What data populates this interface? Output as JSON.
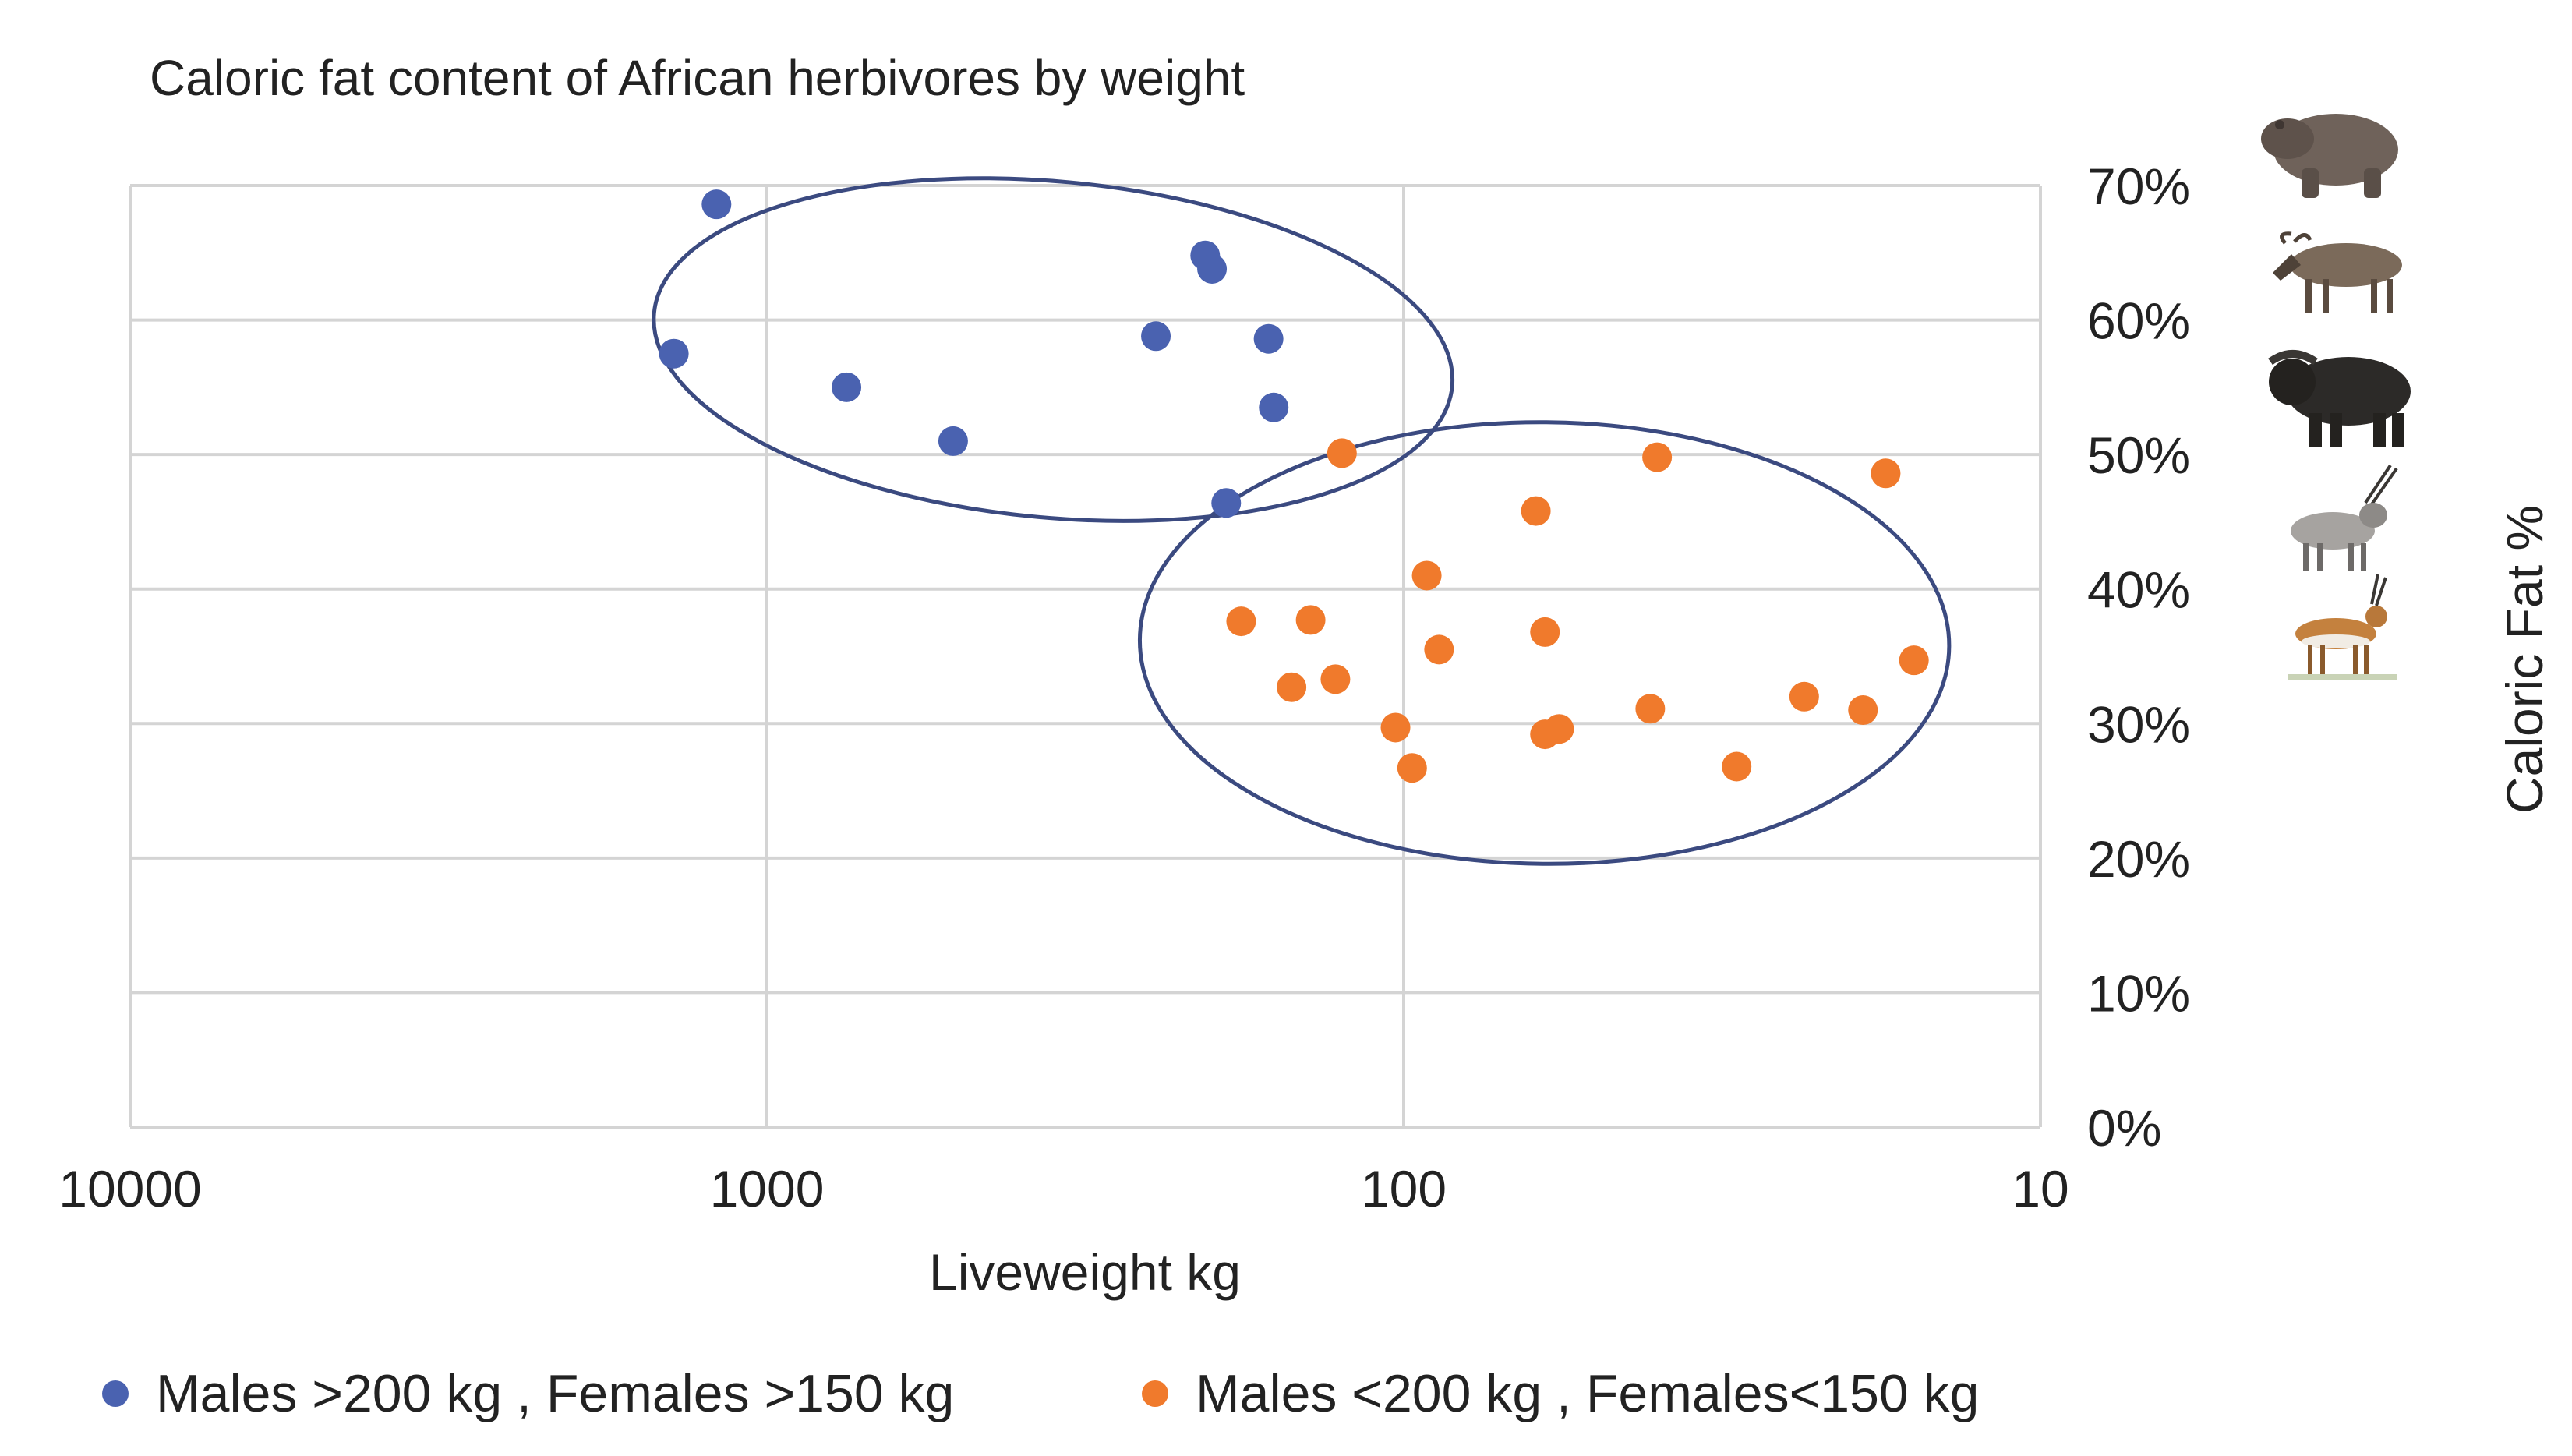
{
  "chart_data": {
    "type": "scatter",
    "title": "Caloric fat content of African herbivores by weight",
    "xlabel": "Liveweight kg",
    "ylabel": "Caloric Fat %",
    "x_scale": "log",
    "x_reversed": true,
    "xlim": [
      10000,
      10
    ],
    "ylim": [
      0,
      0.7
    ],
    "x_ticks": [
      {
        "value": 10000,
        "label": "10000"
      },
      {
        "value": 1000,
        "label": "1000"
      },
      {
        "value": 100,
        "label": "100"
      },
      {
        "value": 10,
        "label": "10"
      }
    ],
    "y_ticks": [
      {
        "value": 0.0,
        "label": "0%"
      },
      {
        "value": 0.1,
        "label": "10%"
      },
      {
        "value": 0.2,
        "label": "20%"
      },
      {
        "value": 0.3,
        "label": "30%"
      },
      {
        "value": 0.4,
        "label": "40%"
      },
      {
        "value": 0.5,
        "label": "50%"
      },
      {
        "value": 0.6,
        "label": "60%"
      },
      {
        "value": 0.7,
        "label": "70%"
      }
    ],
    "y_axis_position": "right",
    "grid": true,
    "legend_position": "bottom",
    "series": [
      {
        "name": "Males >200 kg  , Females >150 kg",
        "color": "#4a62b0",
        "x": [
          1400,
          1200,
          750,
          510,
          245,
          205,
          200,
          163,
          160,
          190
        ],
        "y": [
          0.575,
          0.686,
          0.55,
          0.51,
          0.588,
          0.648,
          0.638,
          0.586,
          0.535,
          0.464
        ]
      },
      {
        "name": "Males <200 kg  , Females<150 kg",
        "color": "#f07a2c",
        "x": [
          125,
          140,
          150,
          88,
          62,
          60,
          40,
          17.5,
          180,
          128,
          92,
          103,
          97,
          60,
          57,
          41,
          30,
          23.5,
          19,
          15.8
        ],
        "y": [
          0.501,
          0.377,
          0.327,
          0.355,
          0.458,
          0.368,
          0.498,
          0.486,
          0.376,
          0.333,
          0.41,
          0.297,
          0.267,
          0.292,
          0.296,
          0.311,
          0.268,
          0.32,
          0.31,
          0.347
        ]
      }
    ],
    "annotations": [
      {
        "type": "ellipse",
        "shape": "outline",
        "encloses": "Males >200 kg  , Females >150 kg",
        "color": "#3b4a80"
      },
      {
        "type": "ellipse",
        "shape": "outline",
        "encloses": "Males <200 kg  , Females<150 kg",
        "color": "#3b4a80"
      }
    ],
    "side_images": [
      "hippo-icon",
      "wildebeest-icon",
      "buffalo-icon",
      "oryx-icon",
      "springbok-icon"
    ]
  }
}
